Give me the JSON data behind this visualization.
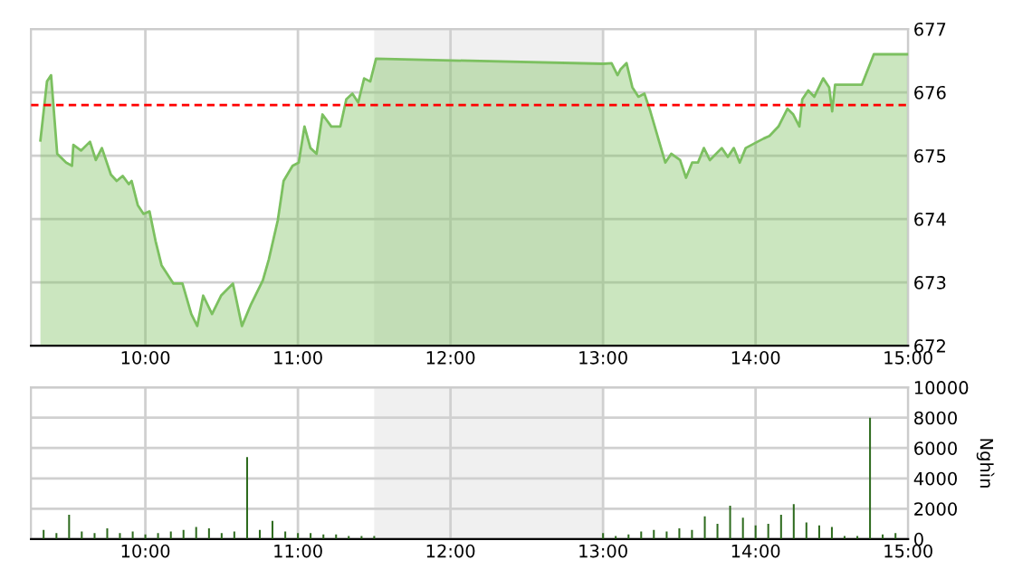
{
  "chart_data": [
    {
      "type": "area",
      "xlim": [
        9.25,
        15
      ],
      "ylim": [
        672,
        677
      ],
      "yticks": [
        672,
        673,
        674,
        675,
        676,
        677
      ],
      "xticks": [
        {
          "value": 10,
          "label": "10:00"
        },
        {
          "value": 11,
          "label": "11:00"
        },
        {
          "value": 12,
          "label": "12:00"
        },
        {
          "value": 13,
          "label": "13:00"
        },
        {
          "value": 14,
          "label": "14:00"
        },
        {
          "value": 15,
          "label": "15:00"
        }
      ],
      "grid": true,
      "series": [
        {
          "color": "#7cc060",
          "x": [
            9.312,
            9.355,
            9.382,
            9.422,
            9.481,
            9.519,
            9.528,
            9.578,
            9.637,
            9.675,
            9.715,
            9.774,
            9.812,
            9.851,
            9.891,
            9.91,
            9.95,
            9.988,
            10.027,
            10.067,
            10.106,
            10.184,
            10.243,
            10.301,
            10.34,
            10.379,
            10.437,
            10.496,
            10.574,
            10.633,
            10.692,
            10.77,
            10.809,
            10.868,
            10.906,
            10.965,
            11.005,
            11.043,
            11.082,
            11.122,
            11.161,
            11.219,
            11.278,
            11.317,
            11.357,
            11.395,
            11.434,
            11.474,
            11.512,
            13.0,
            13.056,
            13.095,
            13.114,
            13.154,
            13.192,
            13.232,
            13.271,
            13.31,
            13.368,
            13.408,
            13.447,
            13.505,
            13.544,
            13.584,
            13.622,
            13.661,
            13.7,
            13.778,
            13.818,
            13.857,
            13.896,
            13.935,
            14.013,
            14.053,
            14.091,
            14.15,
            14.209,
            14.247,
            14.287,
            14.306,
            14.345,
            14.385,
            14.443,
            14.482,
            14.502,
            14.521,
            14.697,
            14.775,
            15.0
          ],
          "values": [
            675.24,
            676.17,
            676.27,
            675.03,
            674.89,
            674.84,
            675.17,
            675.08,
            675.22,
            674.93,
            675.12,
            674.7,
            674.6,
            674.68,
            674.55,
            674.6,
            674.22,
            674.08,
            674.12,
            673.65,
            673.27,
            672.98,
            672.98,
            672.5,
            672.31,
            672.79,
            672.5,
            672.79,
            672.98,
            672.31,
            672.65,
            673.03,
            673.36,
            673.98,
            674.6,
            674.84,
            674.89,
            675.46,
            675.12,
            675.03,
            675.65,
            675.46,
            675.46,
            675.89,
            675.98,
            675.84,
            676.22,
            676.17,
            676.53,
            676.45,
            676.46,
            676.27,
            676.36,
            676.46,
            676.08,
            675.93,
            675.98,
            675.7,
            675.22,
            674.89,
            675.03,
            674.93,
            674.65,
            674.89,
            674.89,
            675.12,
            674.93,
            675.12,
            674.98,
            675.12,
            674.89,
            675.12,
            675.22,
            675.27,
            675.31,
            675.46,
            675.74,
            675.65,
            675.46,
            675.89,
            676.03,
            675.93,
            676.22,
            676.08,
            675.7,
            676.12,
            676.12,
            676.6,
            676.6
          ]
        }
      ],
      "ref_lines": [
        {
          "axis": "y",
          "value": 675.8,
          "color": "#ff0000",
          "line_style": "dashed"
        }
      ],
      "bands": [
        {
          "axis": "x",
          "from": 11.5,
          "to": 13,
          "color": "#f0f0f0"
        }
      ]
    },
    {
      "type": "bar",
      "xlim": [
        9.25,
        15
      ],
      "ylim": [
        0,
        10000
      ],
      "yticks": [
        0,
        2000,
        4000,
        6000,
        8000,
        10000
      ],
      "xticks": [
        {
          "value": 10,
          "label": "10:00"
        },
        {
          "value": 11,
          "label": "11:00"
        },
        {
          "value": 12,
          "label": "12:00"
        },
        {
          "value": 13,
          "label": "13:00"
        },
        {
          "value": 14,
          "label": "14:00"
        },
        {
          "value": 15,
          "label": "15:00"
        }
      ],
      "ylabel": "Nghìn",
      "grid": true,
      "series": [
        {
          "color": "#2e6b1e",
          "x": [
            9.333,
            9.417,
            9.5,
            9.583,
            9.667,
            9.75,
            9.833,
            9.917,
            10.0,
            10.083,
            10.167,
            10.25,
            10.333,
            10.417,
            10.5,
            10.583,
            10.667,
            10.75,
            10.833,
            10.917,
            11.0,
            11.083,
            11.167,
            11.25,
            11.333,
            11.417,
            11.5,
            13.0,
            13.083,
            13.167,
            13.25,
            13.333,
            13.417,
            13.5,
            13.583,
            13.667,
            13.75,
            13.833,
            13.917,
            14.0,
            14.083,
            14.167,
            14.25,
            14.333,
            14.417,
            14.5,
            14.583,
            14.667,
            14.75,
            14.833,
            14.917
          ],
          "values": [
            600,
            400,
            1600,
            500,
            400,
            700,
            400,
            500,
            300,
            400,
            500,
            600,
            800,
            700,
            400,
            500,
            5400,
            600,
            1200,
            500,
            400,
            400,
            300,
            300,
            200,
            200,
            200,
            400,
            200,
            300,
            500,
            600,
            500,
            700,
            600,
            1500,
            1000,
            2200,
            1400,
            900,
            1000,
            1600,
            2300,
            1100,
            900,
            800,
            200,
            200,
            8000,
            300,
            400
          ]
        }
      ],
      "bands": [
        {
          "axis": "x",
          "from": 11.5,
          "to": 13,
          "color": "#f0f0f0"
        }
      ]
    }
  ]
}
